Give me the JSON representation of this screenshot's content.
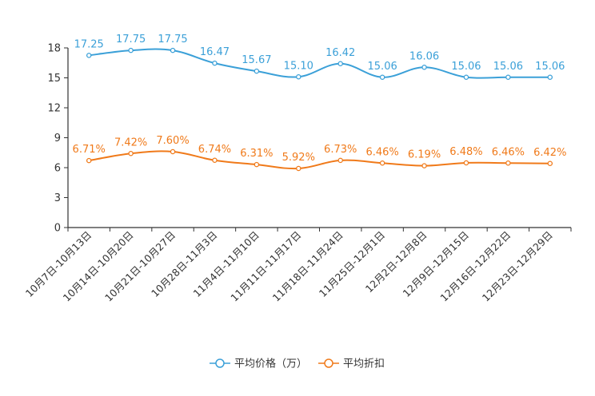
{
  "chart_data": {
    "type": "line",
    "title": "",
    "xlabel": "",
    "ylabel": "",
    "ylim": [
      0,
      18
    ],
    "yticks": [
      0,
      3,
      6,
      9,
      12,
      15,
      18
    ],
    "grid": false,
    "legend_position": "bottom-center",
    "categories": [
      "10月7日-10月13日",
      "10月14日-10月20日",
      "10月21日-10月27日",
      "10月28日-11月3日",
      "11月4日-11月10日",
      "11月11日-11月17日",
      "11月18日-11月24日",
      "11月25日-12月1日",
      "12月2日-12月8日",
      "12月9日-12月15日",
      "12月16日-12月22日",
      "12月23日-12月29日"
    ],
    "series": [
      {
        "name": "平均价格（万）",
        "color": "#3BA0D8",
        "values": [
          17.25,
          17.75,
          17.75,
          16.47,
          15.67,
          15.1,
          16.42,
          15.06,
          16.06,
          15.06,
          15.06,
          15.06
        ],
        "labels": [
          "17.25",
          "17.75",
          "17.75",
          "16.47",
          "15.67",
          "15.10",
          "16.42",
          "15.06",
          "16.06",
          "15.06",
          "15.06",
          "15.06"
        ]
      },
      {
        "name": "平均折扣",
        "color": "#F07A1A",
        "values": [
          6.71,
          7.42,
          7.6,
          6.74,
          6.31,
          5.92,
          6.73,
          6.46,
          6.19,
          6.48,
          6.46,
          6.42
        ],
        "labels": [
          "6.71%",
          "7.42%",
          "7.60%",
          "6.74%",
          "6.31%",
          "5.92%",
          "6.73%",
          "6.46%",
          "6.19%",
          "6.48%",
          "6.46%",
          "6.42%"
        ]
      }
    ]
  }
}
